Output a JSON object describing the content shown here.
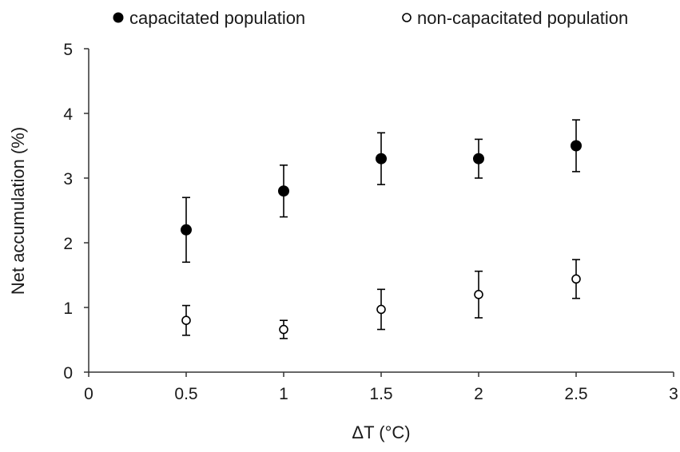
{
  "chart_data": {
    "type": "scatter",
    "xlabel": "ΔT (°C)",
    "ylabel": "Net accumulation  (%)",
    "xlim": [
      0,
      3
    ],
    "ylim": [
      0,
      5
    ],
    "x_ticks": [
      "0",
      "0.5",
      "1",
      "1.5",
      "2",
      "2.5",
      "3"
    ],
    "y_ticks": [
      "0",
      "1",
      "2",
      "3",
      "4",
      "5"
    ],
    "grid": false,
    "legend_position": "top",
    "series": [
      {
        "name": "capacitated population",
        "marker": "filled-circle",
        "color": "#000000",
        "x": [
          0.5,
          1,
          1.5,
          2,
          2.5
        ],
        "y": [
          2.2,
          2.8,
          3.3,
          3.3,
          3.5
        ],
        "error": [
          0.5,
          0.4,
          0.4,
          0.3,
          0.4
        ]
      },
      {
        "name": "non-capacitated population",
        "marker": "open-circle",
        "color": "#000000",
        "x": [
          0.5,
          1,
          1.5,
          2,
          2.5
        ],
        "y": [
          0.8,
          0.66,
          0.97,
          1.2,
          1.44
        ],
        "error": [
          0.23,
          0.14,
          0.31,
          0.36,
          0.3
        ]
      }
    ]
  }
}
